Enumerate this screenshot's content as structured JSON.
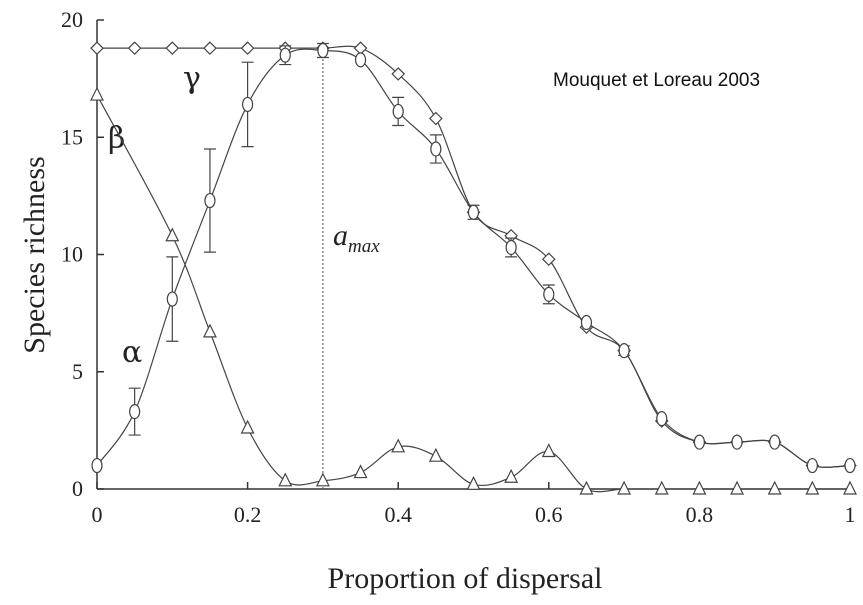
{
  "chart_data": {
    "type": "line",
    "xlabel": "Proportion of dispersal",
    "ylabel": "Species richness",
    "xlim": [
      0,
      1
    ],
    "ylim": [
      0,
      20
    ],
    "xticks": [
      0,
      0.2,
      0.4,
      0.6,
      0.8,
      1
    ],
    "yticks": [
      0,
      5,
      10,
      15,
      20
    ],
    "annotations": {
      "citation": "Mouquet et Loreau 2003",
      "gamma": "γ",
      "beta": "β",
      "alpha": "α",
      "amax": "a",
      "amax_sub": "max"
    },
    "vline": 0.3,
    "series": [
      {
        "name": "gamma",
        "marker": "diamond",
        "color": "#444444",
        "x": [
          0,
          0.05,
          0.1,
          0.15,
          0.2,
          0.25,
          0.3,
          0.35,
          0.4,
          0.45,
          0.5,
          0.55,
          0.6,
          0.65,
          0.7,
          0.75,
          0.8,
          0.85,
          0.9,
          0.95,
          1
        ],
        "values": [
          18.8,
          18.8,
          18.8,
          18.8,
          18.8,
          18.8,
          18.8,
          18.8,
          17.7,
          15.8,
          11.8,
          10.8,
          9.8,
          6.9,
          5.9,
          2.9,
          2.0,
          2.0,
          2.0,
          1.0,
          1.0
        ]
      },
      {
        "name": "alpha",
        "marker": "circle",
        "color": "#444444",
        "x": [
          0,
          0.05,
          0.1,
          0.15,
          0.2,
          0.25,
          0.3,
          0.35,
          0.4,
          0.45,
          0.5,
          0.55,
          0.6,
          0.65,
          0.7,
          0.75,
          0.8,
          0.85,
          0.9,
          0.95,
          1
        ],
        "values": [
          1.0,
          3.3,
          8.1,
          12.3,
          16.4,
          18.5,
          18.7,
          18.3,
          16.1,
          14.5,
          11.8,
          10.3,
          8.3,
          7.1,
          5.9,
          3.0,
          2.0,
          2.0,
          2.0,
          1.0,
          1.0
        ],
        "errors": [
          null,
          1.0,
          1.8,
          2.2,
          1.8,
          0.4,
          0.3,
          null,
          0.6,
          0.6,
          0.3,
          0.4,
          0.4,
          null,
          0.2,
          null,
          null,
          null,
          null,
          null,
          null
        ]
      },
      {
        "name": "beta",
        "marker": "triangle",
        "color": "#444444",
        "x": [
          0,
          0.1,
          0.15,
          0.2,
          0.25,
          0.3,
          0.35,
          0.4,
          0.45,
          0.5,
          0.55,
          0.6,
          0.65,
          0.7,
          0.75,
          0.8,
          0.85,
          0.9,
          0.95,
          1
        ],
        "values": [
          16.8,
          10.8,
          6.7,
          2.6,
          0.35,
          0.35,
          0.7,
          1.8,
          1.4,
          0.2,
          0.5,
          1.6,
          0,
          0,
          0,
          0,
          0,
          0,
          0,
          0
        ]
      }
    ]
  }
}
